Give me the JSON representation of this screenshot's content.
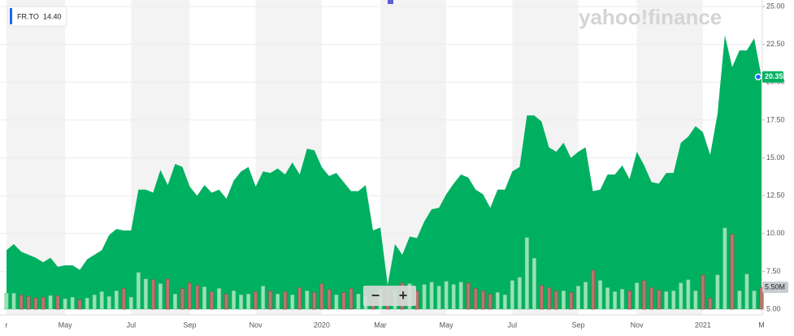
{
  "chart_data": {
    "type": "area",
    "watermark": "yahoo!finance",
    "legend_price": {
      "value": 14.4,
      "label": "14.40"
    },
    "last_price": {
      "value": 20.35,
      "label": "20.35"
    },
    "zoom_controls": [
      "−",
      "+"
    ],
    "categories": [
      "r",
      null,
      null,
      null,
      null,
      null,
      null,
      null,
      "May",
      null,
      null,
      null,
      null,
      null,
      null,
      null,
      null,
      "Jul",
      null,
      null,
      null,
      null,
      null,
      null,
      null,
      "Sep",
      null,
      null,
      null,
      null,
      null,
      null,
      null,
      null,
      "Nov",
      null,
      null,
      null,
      null,
      null,
      null,
      null,
      null,
      "2020",
      null,
      null,
      null,
      null,
      null,
      null,
      null,
      "Mar",
      null,
      null,
      null,
      null,
      null,
      null,
      null,
      null,
      "May",
      null,
      null,
      null,
      null,
      null,
      null,
      null,
      null,
      "Jul",
      null,
      null,
      null,
      null,
      null,
      null,
      null,
      null,
      "Sep",
      null,
      null,
      null,
      null,
      null,
      null,
      null,
      "Nov",
      null,
      null,
      null,
      null,
      null,
      null,
      null,
      null,
      "2021",
      null,
      null,
      null,
      null,
      null,
      null,
      null,
      "M"
    ],
    "series": [
      {
        "name": "FR.TO",
        "color": "#00b061",
        "values": [
          8.9,
          9.3,
          8.8,
          8.6,
          8.4,
          8.1,
          8.4,
          7.8,
          7.9,
          7.9,
          7.6,
          8.3,
          8.6,
          8.9,
          9.9,
          10.3,
          10.2,
          10.2,
          12.9,
          12.9,
          12.7,
          14.2,
          13.2,
          14.6,
          14.4,
          13.1,
          12.5,
          13.2,
          12.7,
          12.9,
          12.3,
          13.5,
          14.1,
          14.4,
          13.1,
          14.1,
          14.0,
          14.3,
          13.9,
          14.7,
          13.9,
          15.6,
          15.5,
          14.4,
          13.8,
          14.0,
          13.4,
          12.8,
          12.8,
          13.2,
          10.2,
          10.4,
          6.6,
          9.3,
          8.6,
          9.8,
          9.7,
          10.8,
          11.6,
          11.7,
          12.6,
          13.3,
          13.9,
          13.7,
          12.9,
          12.6,
          11.7,
          12.9,
          12.9,
          14.1,
          14.4,
          17.8,
          17.8,
          17.4,
          15.7,
          15.4,
          16.0,
          15.0,
          15.4,
          15.7,
          12.8,
          12.9,
          13.9,
          13.9,
          14.5,
          13.6,
          15.4,
          14.5,
          13.4,
          13.3,
          14.0,
          14.0,
          16.0,
          16.4,
          17.1,
          16.7,
          15.2,
          17.9,
          23.1,
          21.0,
          22.1,
          22.1,
          22.9,
          20.35
        ]
      },
      {
        "axis": "y2",
        "up_color": "#97e3b3",
        "down_color": "#b8776b",
        "values": [
          4.0,
          4.0,
          3.6,
          3.2,
          2.8,
          3.0,
          3.4,
          3.4,
          2.6,
          3.0,
          2.4,
          2.8,
          3.6,
          4.4,
          3.2,
          4.6,
          5.2,
          3.0,
          9.2,
          7.6,
          7.4,
          6.4,
          7.6,
          3.8,
          5.2,
          6.6,
          6.0,
          5.6,
          4.4,
          5.2,
          3.8,
          4.6,
          3.6,
          3.8,
          4.4,
          5.8,
          4.6,
          3.8,
          4.4,
          3.6,
          5.4,
          4.6,
          4.2,
          6.4,
          5.0,
          3.6,
          4.2,
          5.2,
          3.8,
          3.2,
          2.8,
          5.0,
          5.6,
          4.8,
          6.6,
          6.4,
          4.6,
          6.2,
          6.8,
          5.8,
          7.0,
          6.2,
          6.8,
          6.6,
          5.2,
          4.6,
          3.8,
          4.2,
          3.6,
          7.2,
          8.0,
          18.0,
          12.8,
          6.0,
          5.4,
          4.6,
          4.6,
          4.2,
          5.8,
          6.8,
          9.8,
          7.2,
          5.4,
          4.4,
          5.0,
          4.6,
          6.6,
          7.2,
          5.4,
          4.8,
          4.4,
          4.6,
          6.6,
          7.4,
          4.6,
          8.6,
          2.8,
          8.6,
          20.4,
          18.8,
          4.6,
          8.8,
          4.6,
          5.5
        ]
      }
    ],
    "ylim": [
      5,
      25
    ],
    "yticks": [
      {
        "value": 5,
        "label": "5.00"
      },
      {
        "value": 7.5,
        "label": "7.50"
      },
      {
        "value": 10,
        "label": "10.00"
      },
      {
        "value": 12.5,
        "label": "12.50"
      },
      {
        "value": 15,
        "label": "15.00"
      },
      {
        "value": 17.5,
        "label": "17.50"
      },
      {
        "value": 20,
        "label": "20.00"
      },
      {
        "value": 22.5,
        "label": "22.50"
      },
      {
        "value": 25,
        "label": "25.00"
      }
    ],
    "y2lim": [
      0,
      76
    ],
    "y2ticks": [
      {
        "value": 5.5,
        "label": "5.50M"
      }
    ],
    "grid": true
  }
}
